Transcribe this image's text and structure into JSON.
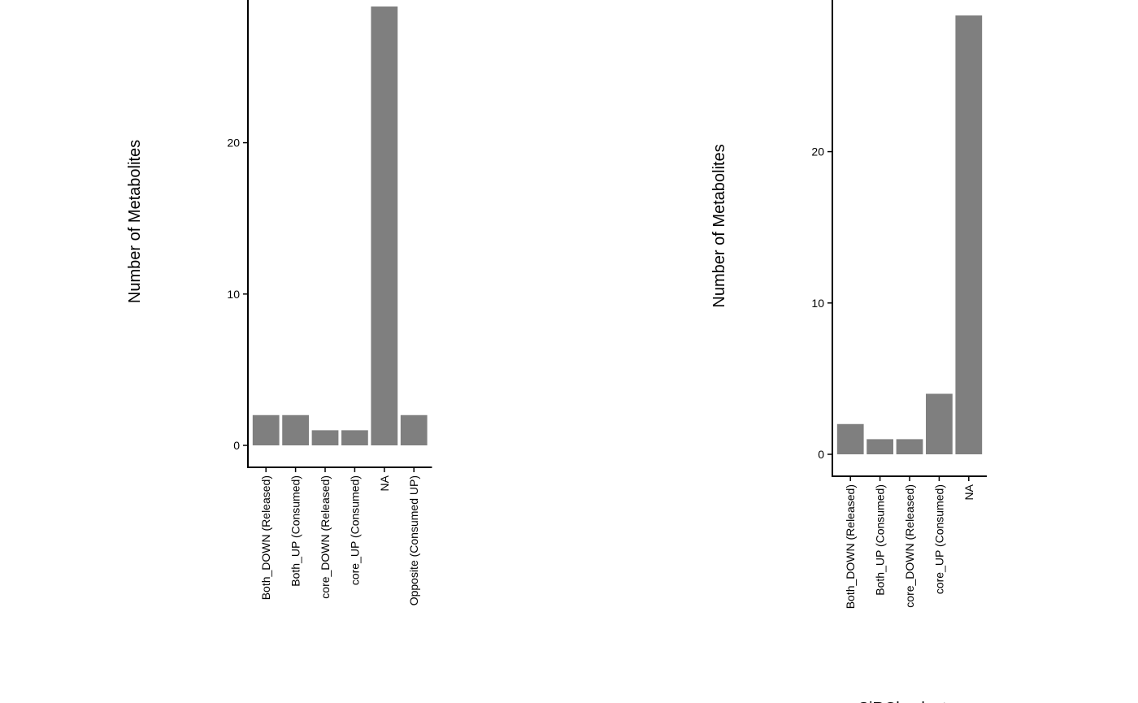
{
  "chart_data": [
    {
      "type": "bar",
      "y_label": "Number of Metabolites",
      "categories": [
        "Both_DOWN (Released)",
        "Both_UP (Consumed)",
        "core_DOWN (Released)",
        "core_UP (Consumed)",
        "NA",
        "Opposite (Consumed UP)"
      ],
      "values": [
        2,
        2,
        1,
        1,
        29,
        2
      ],
      "color": "#7f7f7f",
      "ylim": [
        -1.45,
        30.45
      ],
      "yticks": [
        0,
        10,
        20
      ]
    },
    {
      "type": "bar",
      "y_label": "Number of Metabolites",
      "x_label": "SiRCle cluster",
      "categories": [
        "Both_DOWN (Released)",
        "Both_UP (Consumed)",
        "core_DOWN (Released)",
        "core_UP (Consumed)",
        "NA"
      ],
      "values": [
        2,
        1,
        1,
        4,
        29
      ],
      "color": "#7f7f7f",
      "ylim": [
        -1.45,
        30.45
      ],
      "yticks": [
        0,
        10,
        20
      ]
    }
  ]
}
